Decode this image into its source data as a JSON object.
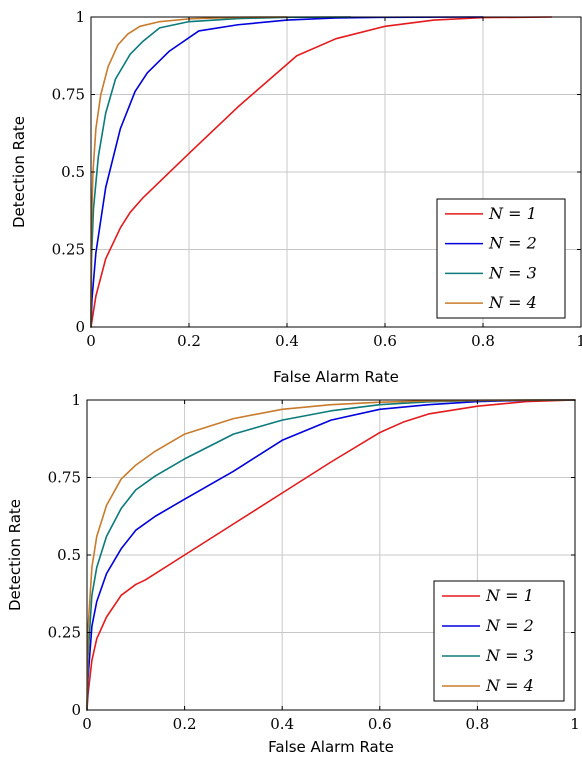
{
  "chart_data": [
    {
      "type": "line",
      "title": "",
      "xlabel": "False Alarm Rate",
      "ylabel": "Detection Rate",
      "xlim": [
        0,
        1
      ],
      "ylim": [
        0,
        1
      ],
      "grid": true,
      "legend_position": "bottom-right",
      "x_ticks": [
        {
          "value": 0,
          "label": "0"
        },
        {
          "value": 0.2,
          "label": "0.2"
        },
        {
          "value": 0.4,
          "label": "0.4"
        },
        {
          "value": 0.6,
          "label": "0.6"
        },
        {
          "value": 0.8,
          "label": "0.8"
        },
        {
          "value": 1,
          "label": "1"
        }
      ],
      "y_ticks": [
        {
          "value": 0,
          "label": "0"
        },
        {
          "value": 0.25,
          "label": "0.25"
        },
        {
          "value": 0.5,
          "label": "0.5"
        },
        {
          "value": 0.75,
          "label": "0.75"
        },
        {
          "value": 1,
          "label": "1"
        }
      ],
      "series": [
        {
          "name": "N = 1",
          "color": "#e41a1c",
          "x": [
            0,
            0.01,
            0.03,
            0.06,
            0.08,
            0.105,
            0.2,
            0.3,
            0.42,
            0.5,
            0.6,
            0.7,
            0.8,
            0.94
          ],
          "y": [
            0,
            0.1,
            0.22,
            0.32,
            0.37,
            0.415,
            0.56,
            0.71,
            0.875,
            0.93,
            0.97,
            0.99,
            0.998,
            1.0
          ]
        },
        {
          "name": "N = 2",
          "color": "#0000dd",
          "x": [
            0,
            0.002,
            0.01,
            0.03,
            0.06,
            0.09,
            0.115,
            0.16,
            0.22,
            0.3,
            0.4,
            0.5,
            0.6,
            0.8
          ],
          "y": [
            0,
            0.09,
            0.24,
            0.45,
            0.64,
            0.76,
            0.82,
            0.89,
            0.955,
            0.975,
            0.99,
            0.997,
            0.999,
            1.0
          ]
        },
        {
          "name": "N = 3",
          "color": "#0b7a7a",
          "x": [
            0,
            0.001,
            0.005,
            0.015,
            0.03,
            0.05,
            0.08,
            0.105,
            0.14,
            0.2,
            0.3,
            0.4,
            0.53
          ],
          "y": [
            0,
            0.22,
            0.38,
            0.55,
            0.69,
            0.8,
            0.88,
            0.92,
            0.965,
            0.985,
            0.995,
            0.999,
            1.0
          ]
        },
        {
          "name": "N = 4",
          "color": "#c87b2c",
          "x": [
            0,
            0.001,
            0.004,
            0.01,
            0.02,
            0.035,
            0.055,
            0.075,
            0.1,
            0.14,
            0.2,
            0.3,
            0.4
          ],
          "y": [
            0,
            0.32,
            0.5,
            0.64,
            0.75,
            0.84,
            0.91,
            0.945,
            0.97,
            0.985,
            0.994,
            0.999,
            1.0
          ]
        }
      ]
    },
    {
      "type": "line",
      "title": "",
      "xlabel": "False Alarm Rate",
      "ylabel": "Detection Rate",
      "xlim": [
        0,
        1
      ],
      "ylim": [
        0,
        1
      ],
      "grid": true,
      "legend_position": "bottom-right",
      "x_ticks": [
        {
          "value": 0,
          "label": "0"
        },
        {
          "value": 0.2,
          "label": "0.2"
        },
        {
          "value": 0.4,
          "label": "0.4"
        },
        {
          "value": 0.6,
          "label": "0.6"
        },
        {
          "value": 0.8,
          "label": "0.8"
        },
        {
          "value": 1,
          "label": "1"
        }
      ],
      "y_ticks": [
        {
          "value": 0,
          "label": "0"
        },
        {
          "value": 0.25,
          "label": "0.25"
        },
        {
          "value": 0.5,
          "label": "0.5"
        },
        {
          "value": 0.75,
          "label": "0.75"
        },
        {
          "value": 1,
          "label": "1"
        }
      ],
      "series": [
        {
          "name": "N = 1",
          "color": "#e41a1c",
          "x": [
            0,
            0.002,
            0.01,
            0.02,
            0.04,
            0.07,
            0.1,
            0.12,
            0.2,
            0.3,
            0.4,
            0.5,
            0.6,
            0.65,
            0.7,
            0.8,
            0.9,
            1.0
          ],
          "y": [
            0,
            0.05,
            0.16,
            0.23,
            0.3,
            0.37,
            0.405,
            0.42,
            0.5,
            0.6,
            0.7,
            0.8,
            0.895,
            0.93,
            0.955,
            0.98,
            0.995,
            1.0
          ]
        },
        {
          "name": "N = 2",
          "color": "#0000dd",
          "x": [
            0,
            0.002,
            0.01,
            0.02,
            0.04,
            0.07,
            0.1,
            0.14,
            0.2,
            0.3,
            0.4,
            0.5,
            0.6,
            0.7,
            0.8,
            0.9,
            1.0
          ],
          "y": [
            0,
            0.1,
            0.27,
            0.35,
            0.44,
            0.52,
            0.58,
            0.625,
            0.68,
            0.77,
            0.87,
            0.935,
            0.97,
            0.985,
            0.995,
            0.999,
            1.0
          ]
        },
        {
          "name": "N = 3",
          "color": "#0b7a7a",
          "x": [
            0,
            0.002,
            0.01,
            0.02,
            0.04,
            0.07,
            0.1,
            0.14,
            0.2,
            0.3,
            0.4,
            0.5,
            0.6,
            0.7,
            0.8,
            0.9,
            1.0
          ],
          "y": [
            0,
            0.17,
            0.37,
            0.46,
            0.56,
            0.65,
            0.71,
            0.755,
            0.81,
            0.89,
            0.935,
            0.965,
            0.985,
            0.994,
            0.998,
            0.9995,
            1.0
          ]
        },
        {
          "name": "N = 4",
          "color": "#c87b2c",
          "x": [
            0,
            0.002,
            0.01,
            0.02,
            0.04,
            0.07,
            0.1,
            0.14,
            0.2,
            0.3,
            0.4,
            0.5,
            0.6,
            0.7,
            0.8,
            0.9,
            1.0
          ],
          "y": [
            0,
            0.26,
            0.46,
            0.56,
            0.66,
            0.745,
            0.79,
            0.835,
            0.89,
            0.94,
            0.97,
            0.985,
            0.993,
            0.997,
            0.999,
            0.9998,
            1.0
          ]
        }
      ]
    }
  ]
}
